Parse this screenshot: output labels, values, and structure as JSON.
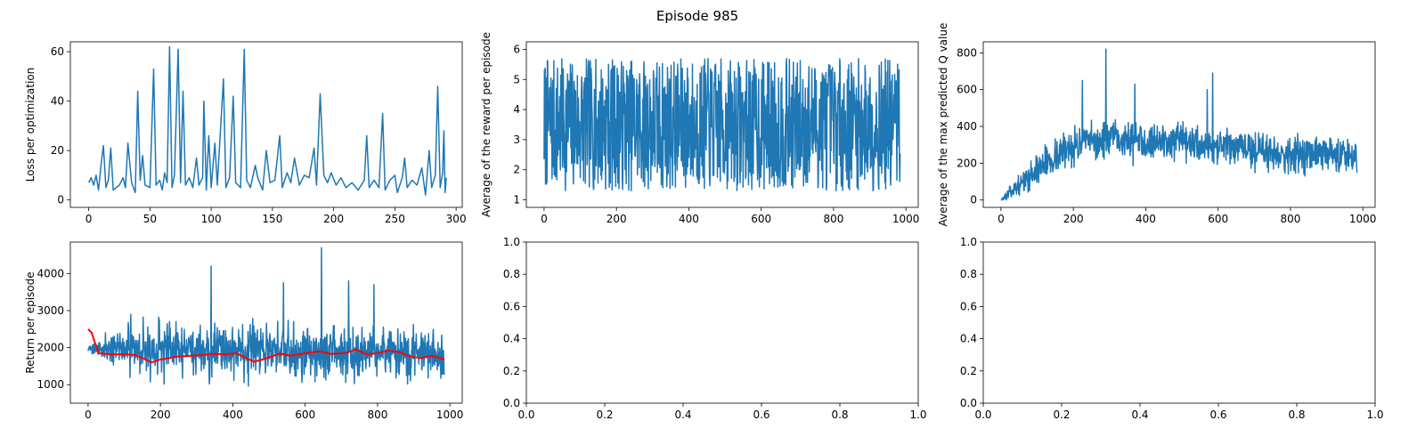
{
  "figure_title": "Episode 985",
  "chart_data": [
    {
      "id": "loss",
      "type": "line",
      "ylabel": "Loss per optimization",
      "xlim": [
        -15,
        305
      ],
      "ylim": [
        -3,
        64
      ],
      "xticks": [
        0,
        50,
        100,
        150,
        200,
        250,
        300
      ],
      "yticks": [
        0,
        20,
        40,
        60
      ],
      "series": [
        {
          "color": "#1f77b4",
          "keypoints": [
            [
              0,
              7
            ],
            [
              2,
              9
            ],
            [
              4,
              6
            ],
            [
              6,
              10
            ],
            [
              8,
              4
            ],
            [
              10,
              14
            ],
            [
              12,
              22
            ],
            [
              14,
              5
            ],
            [
              16,
              8
            ],
            [
              18,
              21
            ],
            [
              20,
              4
            ],
            [
              25,
              6
            ],
            [
              28,
              9
            ],
            [
              30,
              5
            ],
            [
              32,
              23
            ],
            [
              35,
              7
            ],
            [
              38,
              3
            ],
            [
              40,
              44
            ],
            [
              42,
              8
            ],
            [
              44,
              18
            ],
            [
              46,
              6
            ],
            [
              50,
              5
            ],
            [
              53,
              53
            ],
            [
              55,
              6
            ],
            [
              58,
              8
            ],
            [
              60,
              4
            ],
            [
              62,
              11
            ],
            [
              64,
              7
            ],
            [
              66,
              62
            ],
            [
              68,
              5
            ],
            [
              70,
              10
            ],
            [
              73,
              61
            ],
            [
              75,
              7
            ],
            [
              77,
              44
            ],
            [
              79,
              6
            ],
            [
              82,
              9
            ],
            [
              85,
              5
            ],
            [
              88,
              17
            ],
            [
              90,
              6
            ],
            [
              93,
              9
            ],
            [
              94,
              40
            ],
            [
              96,
              4
            ],
            [
              98,
              26
            ],
            [
              100,
              5
            ],
            [
              103,
              23
            ],
            [
              105,
              6
            ],
            [
              110,
              49
            ],
            [
              112,
              5
            ],
            [
              115,
              9
            ],
            [
              118,
              42
            ],
            [
              120,
              7
            ],
            [
              124,
              5
            ],
            [
              127,
              61
            ],
            [
              129,
              8
            ],
            [
              132,
              5
            ],
            [
              136,
              14
            ],
            [
              138,
              9
            ],
            [
              142,
              4
            ],
            [
              145,
              20
            ],
            [
              148,
              7
            ],
            [
              152,
              8
            ],
            [
              156,
              26
            ],
            [
              158,
              5
            ],
            [
              162,
              11
            ],
            [
              165,
              7
            ],
            [
              168,
              17
            ],
            [
              172,
              6
            ],
            [
              176,
              10
            ],
            [
              180,
              9
            ],
            [
              184,
              21
            ],
            [
              186,
              6
            ],
            [
              189,
              43
            ],
            [
              192,
              10
            ],
            [
              195,
              7
            ],
            [
              198,
              11
            ],
            [
              202,
              6
            ],
            [
              206,
              9
            ],
            [
              210,
              5
            ],
            [
              215,
              7
            ],
            [
              220,
              4
            ],
            [
              225,
              8
            ],
            [
              227,
              26
            ],
            [
              229,
              5
            ],
            [
              233,
              8
            ],
            [
              237,
              5
            ],
            [
              240,
              35
            ],
            [
              242,
              4
            ],
            [
              246,
              8
            ],
            [
              250,
              10
            ],
            [
              252,
              3
            ],
            [
              256,
              9
            ],
            [
              258,
              17
            ],
            [
              260,
              5
            ],
            [
              264,
              8
            ],
            [
              268,
              6
            ],
            [
              272,
              13
            ],
            [
              275,
              2
            ],
            [
              278,
              20
            ],
            [
              280,
              5
            ],
            [
              283,
              10
            ],
            [
              285,
              46
            ],
            [
              287,
              5
            ],
            [
              289,
              11
            ],
            [
              290,
              28
            ],
            [
              291,
              3
            ],
            [
              292,
              9
            ]
          ]
        }
      ]
    },
    {
      "id": "reward",
      "type": "line",
      "ylabel": "Average of the reward per episode",
      "xlim": [
        -49,
        1034
      ],
      "ylim": [
        0.75,
        6.25
      ],
      "xticks": [
        0,
        200,
        400,
        600,
        800,
        1000
      ],
      "yticks": [
        1,
        2,
        3,
        4,
        5,
        6
      ],
      "series": [
        {
          "color": "#1f77b4",
          "noisy": {
            "n": 985,
            "seed": 7,
            "min": 0.9,
            "max": 6.05,
            "mode": "uniform",
            "center": 3.5,
            "spread": 2.2
          }
        }
      ]
    },
    {
      "id": "q",
      "type": "line",
      "ylabel": "Average of the max predicted Q value",
      "xlim": [
        -49,
        1034
      ],
      "ylim": [
        -40,
        860
      ],
      "xticks": [
        0,
        200,
        400,
        600,
        800,
        1000
      ],
      "yticks": [
        0,
        200,
        400,
        600,
        800
      ],
      "series": [
        {
          "color": "#1f77b4",
          "noisy": {
            "n": 985,
            "seed": 13,
            "min": 0,
            "max": 820,
            "mode": "trend",
            "trend": [
              [
                0,
                0
              ],
              [
                50,
                80
              ],
              [
                120,
                200
              ],
              [
                200,
                300
              ],
              [
                300,
                330
              ],
              [
                450,
                320
              ],
              [
                600,
                290
              ],
              [
                800,
                250
              ],
              [
                985,
                250
              ]
            ],
            "spread": 90,
            "spikes": [
              [
                290,
                820
              ],
              [
                585,
                690
              ],
              [
                225,
                650
              ],
              [
                370,
                630
              ],
              [
                570,
                600
              ]
            ]
          }
        }
      ]
    },
    {
      "id": "return",
      "type": "line",
      "ylabel": "Return per episode",
      "xlim": [
        -49,
        1034
      ],
      "ylim": [
        500,
        4850
      ],
      "xticks": [
        0,
        200,
        400,
        600,
        800,
        1000
      ],
      "yticks": [
        1000,
        2000,
        3000,
        4000
      ],
      "series": [
        {
          "color": "#1f77b4",
          "noisy": {
            "n": 985,
            "seed": 21,
            "min": 650,
            "max": 4700,
            "mode": "trend",
            "trend": [
              [
                0,
                2000
              ],
              [
                985,
                1800
              ]
            ],
            "spread": 650,
            "spikes": [
              [
                645,
                4700
              ],
              [
                340,
                4200
              ],
              [
                720,
                3800
              ],
              [
                540,
                3750
              ],
              [
                790,
                3700
              ]
            ]
          }
        },
        {
          "color": "#ff0000",
          "width": 2,
          "keypoints": [
            [
              0,
              2500
            ],
            [
              10,
              2400
            ],
            [
              20,
              2100
            ],
            [
              30,
              1850
            ],
            [
              60,
              1820
            ],
            [
              100,
              1820
            ],
            [
              130,
              1800
            ],
            [
              150,
              1720
            ],
            [
              175,
              1600
            ],
            [
              200,
              1680
            ],
            [
              250,
              1760
            ],
            [
              300,
              1790
            ],
            [
              350,
              1830
            ],
            [
              380,
              1820
            ],
            [
              410,
              1850
            ],
            [
              440,
              1700
            ],
            [
              460,
              1620
            ],
            [
              490,
              1700
            ],
            [
              530,
              1840
            ],
            [
              560,
              1780
            ],
            [
              600,
              1850
            ],
            [
              640,
              1900
            ],
            [
              670,
              1830
            ],
            [
              710,
              1850
            ],
            [
              740,
              1950
            ],
            [
              770,
              1820
            ],
            [
              800,
              1850
            ],
            [
              830,
              1920
            ],
            [
              860,
              1880
            ],
            [
              890,
              1760
            ],
            [
              920,
              1720
            ],
            [
              950,
              1780
            ],
            [
              985,
              1680
            ]
          ]
        }
      ]
    },
    {
      "id": "empty1",
      "type": "line",
      "xlim": [
        0,
        1
      ],
      "ylim": [
        0,
        1
      ],
      "xticks": [
        0.0,
        0.2,
        0.4,
        0.6,
        0.8,
        1.0
      ],
      "yticks": [
        0.0,
        0.2,
        0.4,
        0.6,
        0.8,
        1.0
      ],
      "series": []
    },
    {
      "id": "empty2",
      "type": "line",
      "xlim": [
        0,
        1
      ],
      "ylim": [
        0,
        1
      ],
      "xticks": [
        0.0,
        0.2,
        0.4,
        0.6,
        0.8,
        1.0
      ],
      "yticks": [
        0.0,
        0.2,
        0.4,
        0.6,
        0.8,
        1.0
      ],
      "series": []
    }
  ]
}
